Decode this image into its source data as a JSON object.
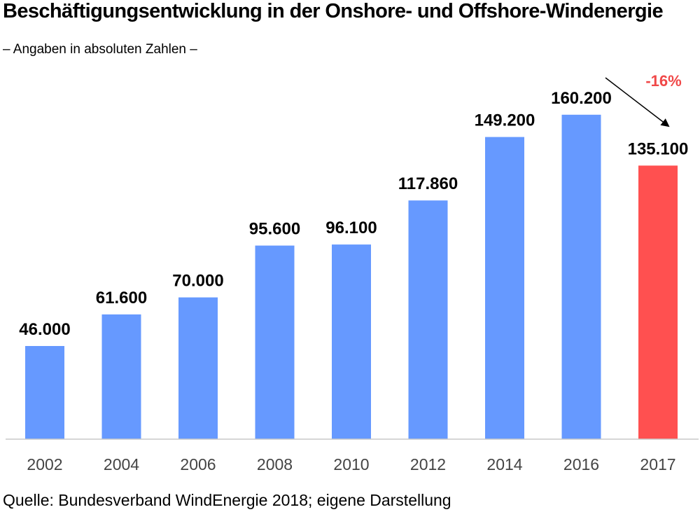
{
  "chart_data": {
    "type": "bar",
    "title": "Beschäftigungsentwicklung in der Onshore- und Offshore-Windenergie",
    "subtitle": "– Angaben in absoluten Zahlen –",
    "categories": [
      "2002",
      "2004",
      "2006",
      "2008",
      "2010",
      "2012",
      "2014",
      "2016",
      "2017"
    ],
    "values": [
      46000,
      61600,
      70000,
      95600,
      96100,
      117860,
      149200,
      160200,
      135100
    ],
    "value_labels": [
      "46.000",
      "61.600",
      "70.000",
      "95.600",
      "96.100",
      "117.860",
      "149.200",
      "160.200",
      "135.100"
    ],
    "highlight_category": "2017",
    "annotation": "-16%",
    "ylim": [
      0,
      200000
    ],
    "grid": false,
    "legend": "none",
    "colors": {
      "bar": "#6699ff",
      "highlight": "#ff5050",
      "annotation": "#f04848",
      "axis": "#c8c8c8",
      "label": "#000000"
    }
  },
  "source": "Quelle: Bundesverband WindEnergie 2018; eigene Darstellung"
}
